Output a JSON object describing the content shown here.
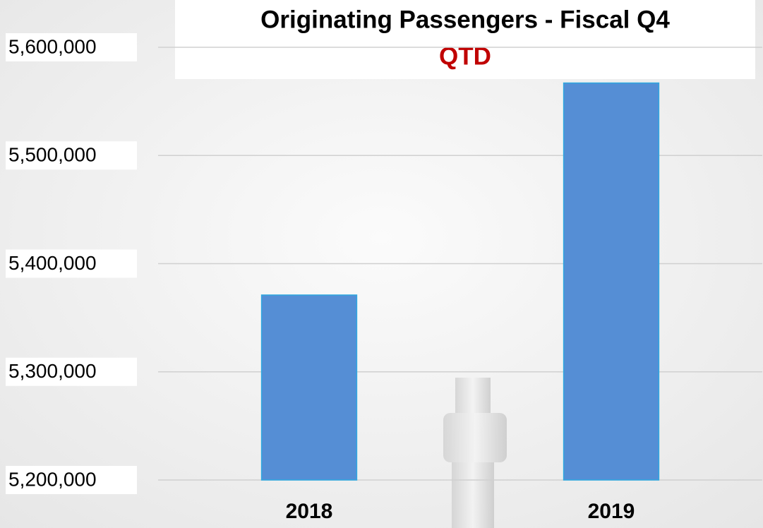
{
  "chart_data": {
    "type": "bar",
    "title": "Originating Passengers - Fiscal Q4",
    "subtitle": "QTD",
    "categories": [
      "2018",
      "2019"
    ],
    "values": [
      5371000,
      5567000
    ],
    "color": "#558ed5",
    "ylim": [
      5200000,
      5600000
    ],
    "yticks": [
      {
        "value": 5200000,
        "label": "5,200,000"
      },
      {
        "value": 5300000,
        "label": "5,300,000"
      },
      {
        "value": 5400000,
        "label": "5,400,000"
      },
      {
        "value": 5500000,
        "label": "5,500,000"
      },
      {
        "value": 5600000,
        "label": "5,600,000"
      }
    ],
    "grid": true
  }
}
